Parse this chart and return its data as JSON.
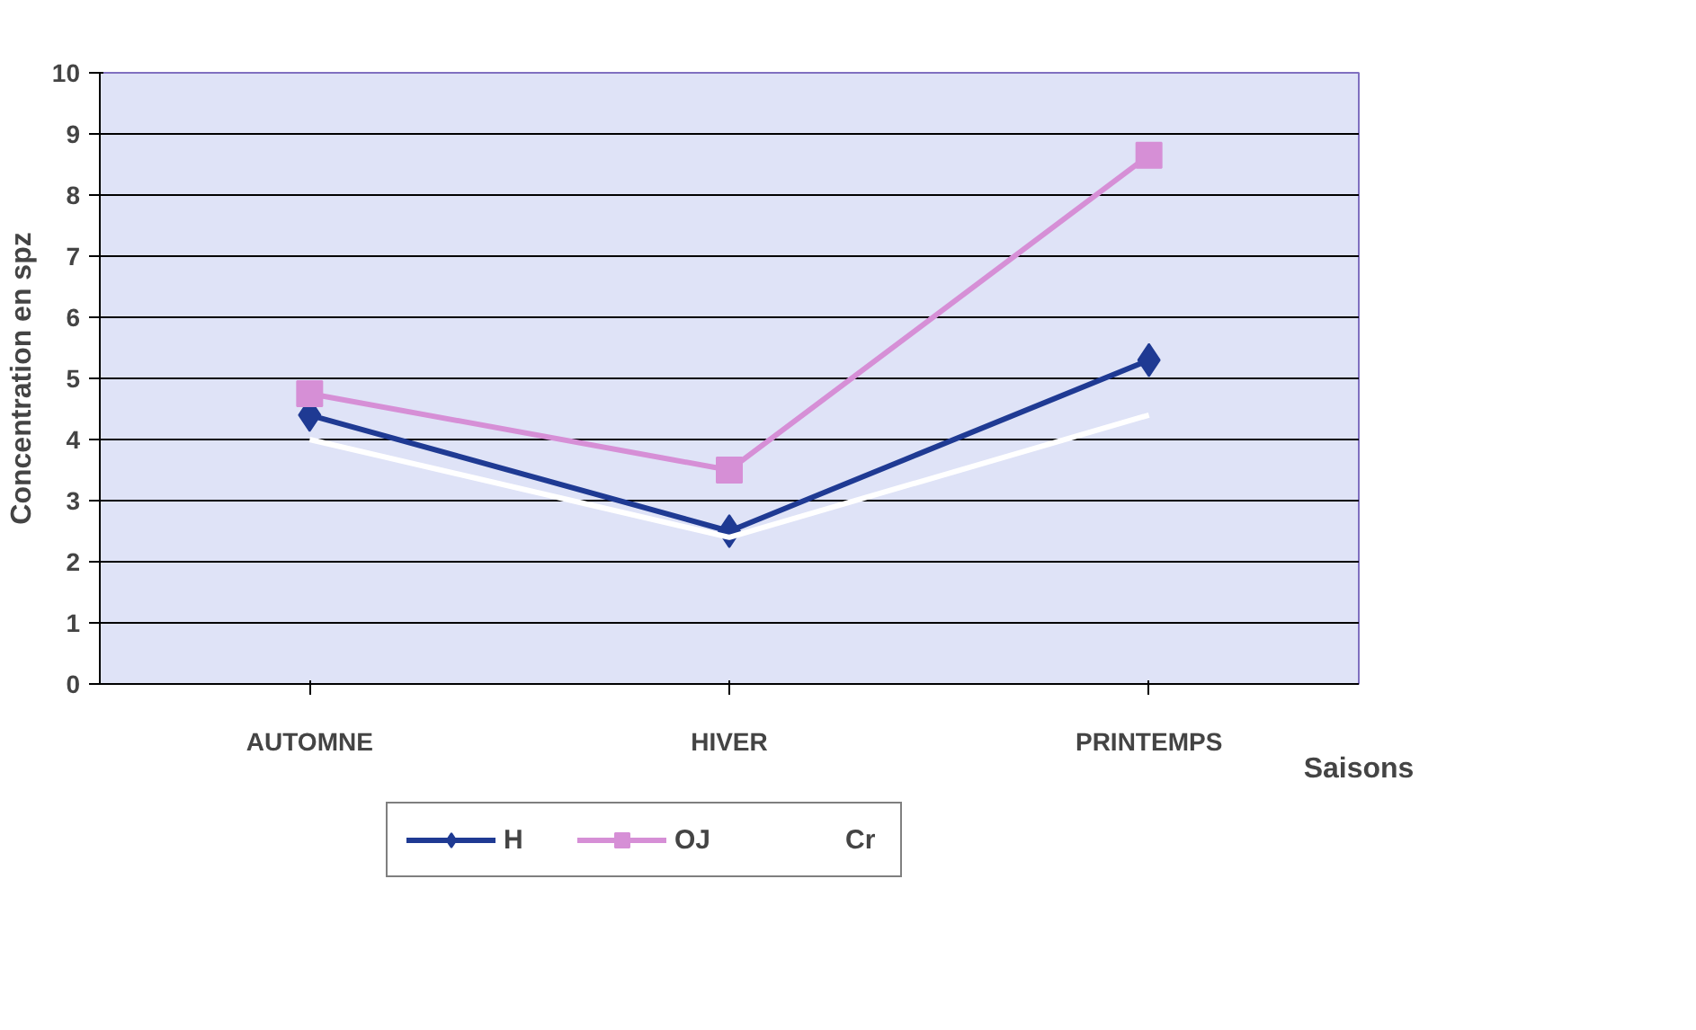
{
  "chart_data": {
    "type": "line",
    "ylabel": "Concentration en spz",
    "xlabel": "Saisons",
    "categories": [
      "AUTOMNE",
      "HIVER",
      "PRINTEMPS"
    ],
    "series": [
      {
        "name": "H",
        "color": "#1f3a93",
        "values": [
          4.4,
          2.5,
          5.3
        ],
        "marker": "diamond"
      },
      {
        "name": "OJ",
        "color": "#d68fd6",
        "values": [
          4.75,
          3.5,
          8.65
        ],
        "marker": "square"
      },
      {
        "name": "Cr",
        "color": "#ffffff",
        "values": [
          4.0,
          2.4,
          4.4
        ],
        "marker": "none"
      }
    ],
    "ylim": [
      0,
      10
    ],
    "yticks": [
      0,
      1,
      2,
      3,
      4,
      5,
      6,
      7,
      8,
      9,
      10
    ],
    "grid": "y",
    "legend": "bottom",
    "line_style": "solid"
  }
}
